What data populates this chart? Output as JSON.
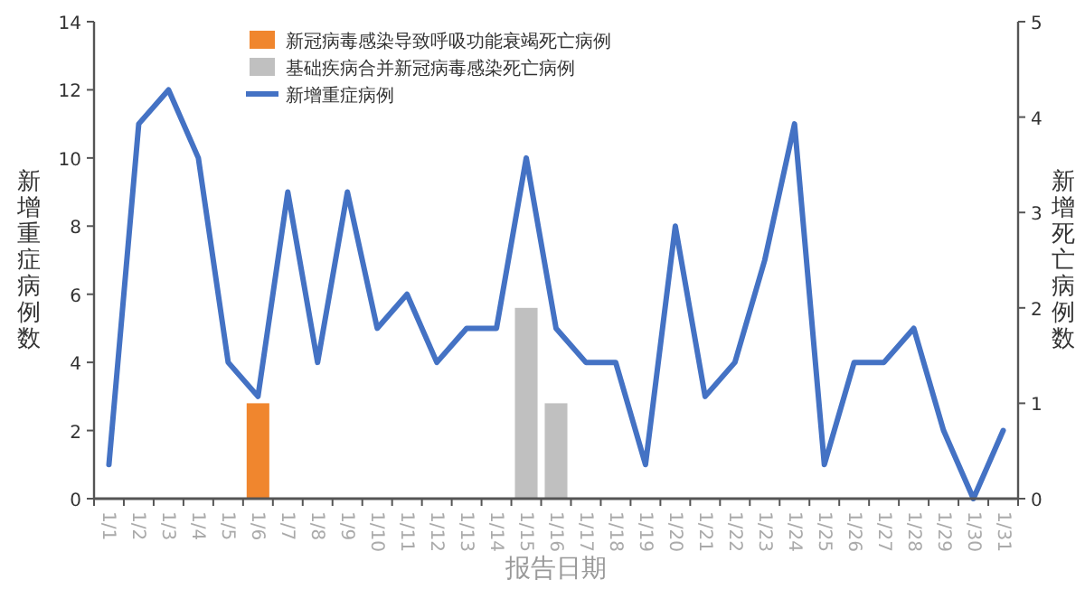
{
  "chart_data": {
    "type": "bar",
    "xlabel": "报告日期",
    "ylabel": "新增重症病例数",
    "y2label": "新增死亡病例数",
    "categories": [
      "1/1",
      "1/2",
      "1/3",
      "1/4",
      "1/5",
      "1/6",
      "1/7",
      "1/8",
      "1/9",
      "1/10",
      "1/11",
      "1/12",
      "1/13",
      "1/14",
      "1/15",
      "1/16",
      "1/17",
      "1/18",
      "1/19",
      "1/20",
      "1/21",
      "1/22",
      "1/23",
      "1/24",
      "1/25",
      "1/26",
      "1/27",
      "1/28",
      "1/29",
      "1/30",
      "1/31"
    ],
    "series": [
      {
        "name": "新冠病毒感染导致呼吸功能衰竭死亡病例",
        "axis": "y2",
        "color": "#f0862e",
        "values": [
          null,
          null,
          null,
          null,
          null,
          1,
          null,
          null,
          null,
          null,
          null,
          null,
          null,
          null,
          null,
          null,
          null,
          null,
          null,
          null,
          null,
          null,
          null,
          null,
          null,
          null,
          null,
          null,
          null,
          null,
          null
        ]
      },
      {
        "name": "基础疾病合并新冠病毒感染死亡病例",
        "axis": "y2",
        "color": "#c0c0c0",
        "values": [
          null,
          null,
          null,
          null,
          null,
          null,
          null,
          null,
          null,
          null,
          null,
          null,
          null,
          null,
          2,
          1,
          null,
          null,
          null,
          null,
          null,
          null,
          null,
          null,
          null,
          null,
          null,
          null,
          null,
          null,
          null
        ]
      },
      {
        "name": "新增重症病例",
        "type": "line",
        "color": "#4472c4",
        "values": [
          1,
          11,
          12,
          10,
          4,
          3,
          9,
          4,
          9,
          5,
          6,
          4,
          5,
          5,
          10,
          5,
          4,
          4,
          1,
          8,
          3,
          4,
          7,
          11,
          1,
          4,
          4,
          5,
          2,
          0,
          2
        ]
      }
    ],
    "ylim": [
      0,
      14
    ],
    "yticks": [
      0,
      2,
      4,
      6,
      8,
      10,
      12,
      14
    ],
    "y2lim": [
      0,
      5
    ],
    "y2ticks": [
      0,
      1,
      2,
      3,
      4,
      5
    ],
    "grid": false,
    "legend": "top",
    "marker": "none",
    "line_style": "solid"
  }
}
